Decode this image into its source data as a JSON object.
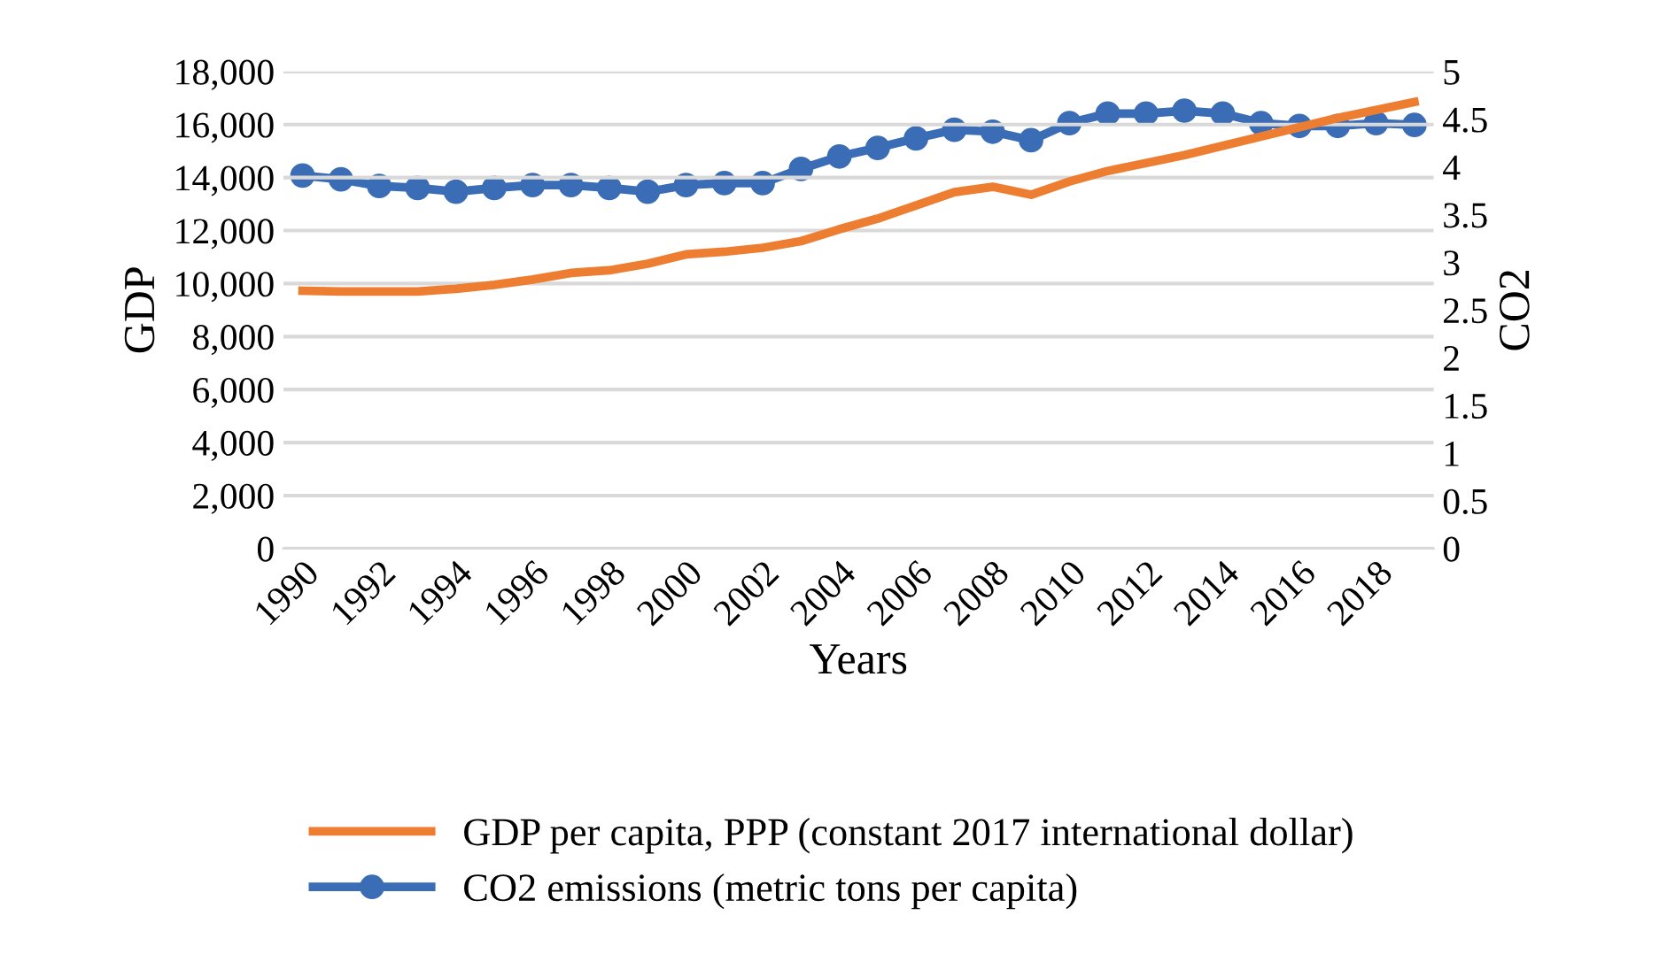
{
  "chart_data": {
    "type": "line",
    "xlabel": "Years",
    "ylabel": "GDP",
    "y2label": "CO2",
    "categories": [
      "1990",
      null,
      "1992",
      null,
      "1994",
      null,
      "1996",
      null,
      "1998",
      null,
      "2000",
      null,
      "2002",
      null,
      "2004",
      null,
      "2006",
      null,
      "2008",
      null,
      "2010",
      null,
      "2012",
      null,
      "2014",
      null,
      "2016",
      null,
      "2018",
      null
    ],
    "series": [
      {
        "name": "GDP per capita, PPP (constant 2017 international dollar)",
        "color": "#ed7d31",
        "marker": "none",
        "values": [
          9730,
          9700,
          9700,
          9700,
          9800,
          9950,
          10150,
          10400,
          10500,
          10750,
          11100,
          11200,
          11350,
          11600,
          12050,
          12450,
          12950,
          13450,
          13650,
          13350,
          13850,
          14250,
          14550,
          14850,
          15200,
          15550,
          15900,
          16250,
          16550,
          16850
        ]
      },
      {
        "name": "CO2 emissions (metric tons per capita)",
        "color": "#3a6db5",
        "marker": "circle",
        "axis": "y2",
        "values": [
          3.91,
          3.87,
          3.8,
          3.78,
          3.74,
          3.78,
          3.81,
          3.81,
          3.78,
          3.74,
          3.81,
          3.83,
          3.83,
          3.98,
          4.11,
          4.2,
          4.3,
          4.39,
          4.37,
          4.28,
          4.46,
          4.56,
          4.56,
          4.59,
          4.56,
          4.46,
          4.43,
          4.43,
          4.46,
          4.44
        ]
      }
    ],
    "ylim": [
      0,
      18000
    ],
    "yticks": [
      {
        "value": 0,
        "label": "0"
      },
      {
        "value": 2000,
        "label": "2,000"
      },
      {
        "value": 4000,
        "label": "4,000"
      },
      {
        "value": 6000,
        "label": "6,000"
      },
      {
        "value": 8000,
        "label": "8,000"
      },
      {
        "value": 10000,
        "label": "10,000"
      },
      {
        "value": 12000,
        "label": "12,000"
      },
      {
        "value": 14000,
        "label": "14,000"
      },
      {
        "value": 16000,
        "label": "16,000"
      },
      {
        "value": 18000,
        "label": "18,000"
      }
    ],
    "y2lim": [
      0,
      5
    ],
    "y2ticks": [
      0,
      0.5,
      1,
      1.5,
      2,
      2.5,
      3,
      3.5,
      4,
      4.5,
      5
    ],
    "grid": "y",
    "legend": "bottom"
  }
}
